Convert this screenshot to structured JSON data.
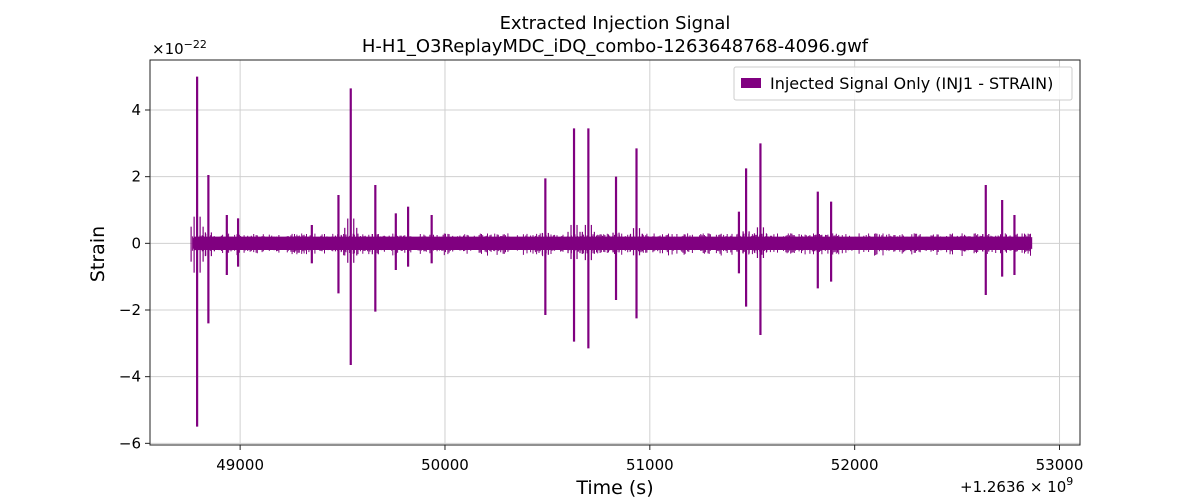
{
  "chart_data": {
    "type": "line",
    "title": "Extracted Injection Signal",
    "subtitle": "H-H1_O3ReplayMDC_iDQ_combo-1263648768-4096.gwf",
    "xlabel": "Time (s)",
    "ylabel": "Strain",
    "x_offset_label": "+1.2636 × 10",
    "x_offset_exp": "9",
    "y_scale_label": "×10",
    "y_scale_exp": "−22",
    "xlim": [
      48560,
      53100
    ],
    "ylim": [
      -6.05,
      5.5
    ],
    "xticks": [
      49000,
      50000,
      51000,
      52000,
      53000
    ],
    "yticks": [
      -6,
      -4,
      -2,
      0,
      2,
      4
    ],
    "ytick_labels": [
      "−6",
      "−4",
      "−2",
      "0",
      "2",
      "4"
    ],
    "grid": true,
    "legend_position": "top-right",
    "series": [
      {
        "name": "Injected Signal Only (INJ1 - STRAIN)",
        "color": "#800080",
        "time_range": [
          48768,
          52864
        ],
        "baseline_band": [
          -0.2,
          0.2
        ],
        "spikes": [
          {
            "t": 48790,
            "max": 5.0,
            "min": -5.5
          },
          {
            "t": 48845,
            "max": 2.05,
            "min": -2.4
          },
          {
            "t": 48935,
            "max": 0.85,
            "min": -0.95
          },
          {
            "t": 48990,
            "max": 0.75,
            "min": -0.7
          },
          {
            "t": 49350,
            "max": 0.55,
            "min": -0.6
          },
          {
            "t": 49480,
            "max": 1.45,
            "min": -1.5
          },
          {
            "t": 49540,
            "max": 4.65,
            "min": -3.65
          },
          {
            "t": 49660,
            "max": 1.75,
            "min": -2.05
          },
          {
            "t": 49760,
            "max": 0.9,
            "min": -0.8
          },
          {
            "t": 49820,
            "max": 1.1,
            "min": -0.7
          },
          {
            "t": 49935,
            "max": 0.85,
            "min": -0.6
          },
          {
            "t": 50490,
            "max": 1.95,
            "min": -2.15
          },
          {
            "t": 50630,
            "max": 3.45,
            "min": -2.95
          },
          {
            "t": 50700,
            "max": 3.45,
            "min": -3.15
          },
          {
            "t": 50835,
            "max": 2.0,
            "min": -1.7
          },
          {
            "t": 50935,
            "max": 2.85,
            "min": -2.25
          },
          {
            "t": 51435,
            "max": 0.95,
            "min": -0.9
          },
          {
            "t": 51470,
            "max": 2.25,
            "min": -1.9
          },
          {
            "t": 51540,
            "max": 3.0,
            "min": -2.75
          },
          {
            "t": 51820,
            "max": 1.55,
            "min": -1.35
          },
          {
            "t": 51885,
            "max": 1.25,
            "min": -1.15
          },
          {
            "t": 52640,
            "max": 1.75,
            "min": -1.55
          },
          {
            "t": 52720,
            "max": 1.3,
            "min": -1.0
          },
          {
            "t": 52780,
            "max": 0.85,
            "min": -0.95
          }
        ]
      }
    ]
  }
}
